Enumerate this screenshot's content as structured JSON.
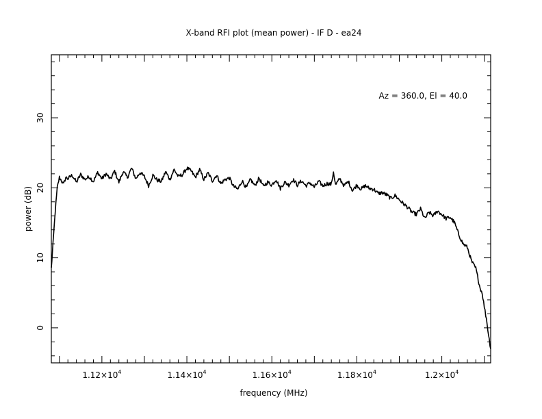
{
  "chart_data": {
    "type": "line",
    "title": "X-band RFI plot (mean power) - IF D - ea24",
    "xlabel": "frequency (MHz)",
    "ylabel": "power (dB)",
    "annotation": "Az = 360.0, El = 40.0",
    "xlim": [
      11081,
      12115
    ],
    "ylim": [
      -5,
      39
    ],
    "x_ticks": [
      {
        "value": 11200,
        "mantissa": "1.12",
        "exponent": "4"
      },
      {
        "value": 11400,
        "mantissa": "1.14",
        "exponent": "4"
      },
      {
        "value": 11600,
        "mantissa": "1.16",
        "exponent": "4"
      },
      {
        "value": 11800,
        "mantissa": "1.18",
        "exponent": "4"
      },
      {
        "value": 12000,
        "mantissa": "1.2",
        "exponent": "4"
      }
    ],
    "x_tick_times": "×10",
    "y_ticks": [
      0,
      10,
      20,
      30
    ],
    "grid": false,
    "line_color": "#000000",
    "series": [
      {
        "x": [
          11081,
          11085,
          11090,
          11095,
          11100,
          11105,
          11110,
          11115,
          11120,
          11130,
          11140,
          11150,
          11160,
          11170,
          11180,
          11190,
          11200,
          11210,
          11220,
          11230,
          11240,
          11250,
          11260,
          11270,
          11280,
          11290,
          11300,
          11310,
          11320,
          11330,
          11340,
          11350,
          11360,
          11370,
          11380,
          11390,
          11400,
          11410,
          11420,
          11430,
          11440,
          11450,
          11460,
          11470,
          11480,
          11490,
          11500,
          11510,
          11520,
          11530,
          11540,
          11550,
          11560,
          11570,
          11580,
          11590,
          11600,
          11610,
          11620,
          11630,
          11640,
          11650,
          11660,
          11670,
          11680,
          11690,
          11700,
          11710,
          11720,
          11730,
          11740,
          11745,
          11750,
          11760,
          11770,
          11780,
          11790,
          11800,
          11810,
          11820,
          11830,
          11840,
          11850,
          11860,
          11870,
          11880,
          11890,
          11900,
          11910,
          11920,
          11930,
          11940,
          11950,
          11960,
          11970,
          11980,
          11990,
          12000,
          12010,
          12020,
          12030,
          12040,
          12050,
          12060,
          12070,
          12080,
          12090,
          12095,
          12100,
          12105,
          12110,
          12115
        ],
        "y": [
          8.5,
          12.0,
          16.5,
          20.0,
          21.5,
          21.0,
          20.5,
          21.5,
          21.3,
          21.8,
          20.8,
          21.9,
          21.2,
          21.6,
          20.9,
          22.2,
          21.3,
          22.0,
          21.2,
          22.4,
          20.8,
          22.3,
          21.5,
          22.8,
          21.3,
          22.2,
          21.6,
          20.3,
          21.8,
          21.1,
          20.9,
          22.3,
          21.2,
          22.6,
          21.6,
          21.9,
          22.8,
          22.4,
          21.5,
          22.6,
          21.2,
          22.1,
          21.0,
          21.8,
          20.6,
          21.2,
          21.4,
          20.2,
          19.8,
          21.0,
          20.0,
          21.2,
          20.3,
          21.4,
          20.2,
          20.8,
          20.4,
          21.2,
          19.9,
          20.8,
          20.4,
          21.2,
          20.4,
          21.0,
          20.3,
          20.7,
          20.1,
          20.9,
          20.3,
          20.6,
          20.5,
          22.3,
          20.4,
          21.3,
          20.3,
          20.9,
          19.6,
          20.4,
          19.8,
          20.3,
          19.9,
          19.8,
          19.2,
          19.3,
          19.0,
          18.5,
          18.9,
          18.3,
          17.7,
          17.2,
          16.5,
          16.2,
          17.0,
          15.6,
          16.5,
          16.0,
          16.7,
          16.2,
          15.6,
          15.8,
          15.0,
          13.3,
          12.0,
          11.5,
          9.5,
          8.5,
          5.7,
          5.0,
          3.0,
          1.3,
          -1.0,
          -3.0
        ]
      }
    ]
  }
}
